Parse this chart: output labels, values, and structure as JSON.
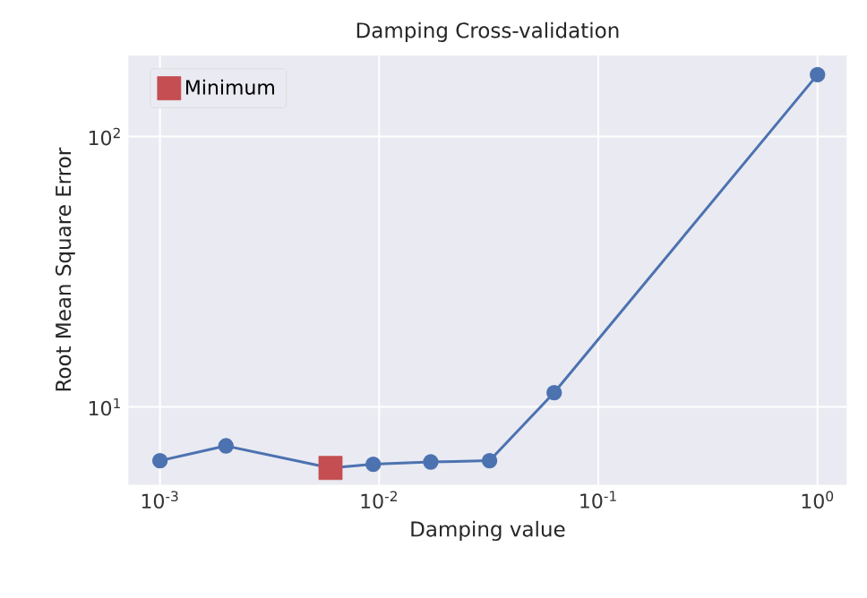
{
  "chart_data": {
    "type": "line",
    "title": "Damping Cross-validation",
    "xlabel": "Damping value",
    "ylabel": "Root Mean Square Error",
    "log": "xy",
    "grid": true,
    "legend": "top left",
    "xlim": [
      0.000718,
      1.36
    ],
    "ylim": [
      5.16,
      199.5
    ],
    "xticks": [
      {
        "value": 0.001,
        "label": "10$^{-3}$"
      },
      {
        "value": 0.01,
        "label": "10$^{-2}$"
      },
      {
        "value": 0.1,
        "label": "10$^{-1}$"
      },
      {
        "value": 1,
        "label": "10$^{0}$"
      }
    ],
    "yticks": [
      {
        "value": 10,
        "label": "10$^{1}$"
      },
      {
        "value": 100,
        "label": "10$^{2}$"
      }
    ],
    "series": [
      {
        "color": "#4c72b0",
        "marker": "circle",
        "x": [
          0.001,
          0.002,
          0.006,
          0.0094,
          0.0172,
          0.0319,
          0.0629,
          1
        ],
        "values": [
          6.33,
          7.18,
          5.95,
          6.14,
          6.26,
          6.33,
          11.3,
          169.5
        ]
      },
      {
        "type": "scatter",
        "name": "Minimum",
        "color": "#c44e52",
        "marker": "square",
        "x": [
          0.006
        ],
        "values": [
          5.95
        ]
      }
    ]
  }
}
